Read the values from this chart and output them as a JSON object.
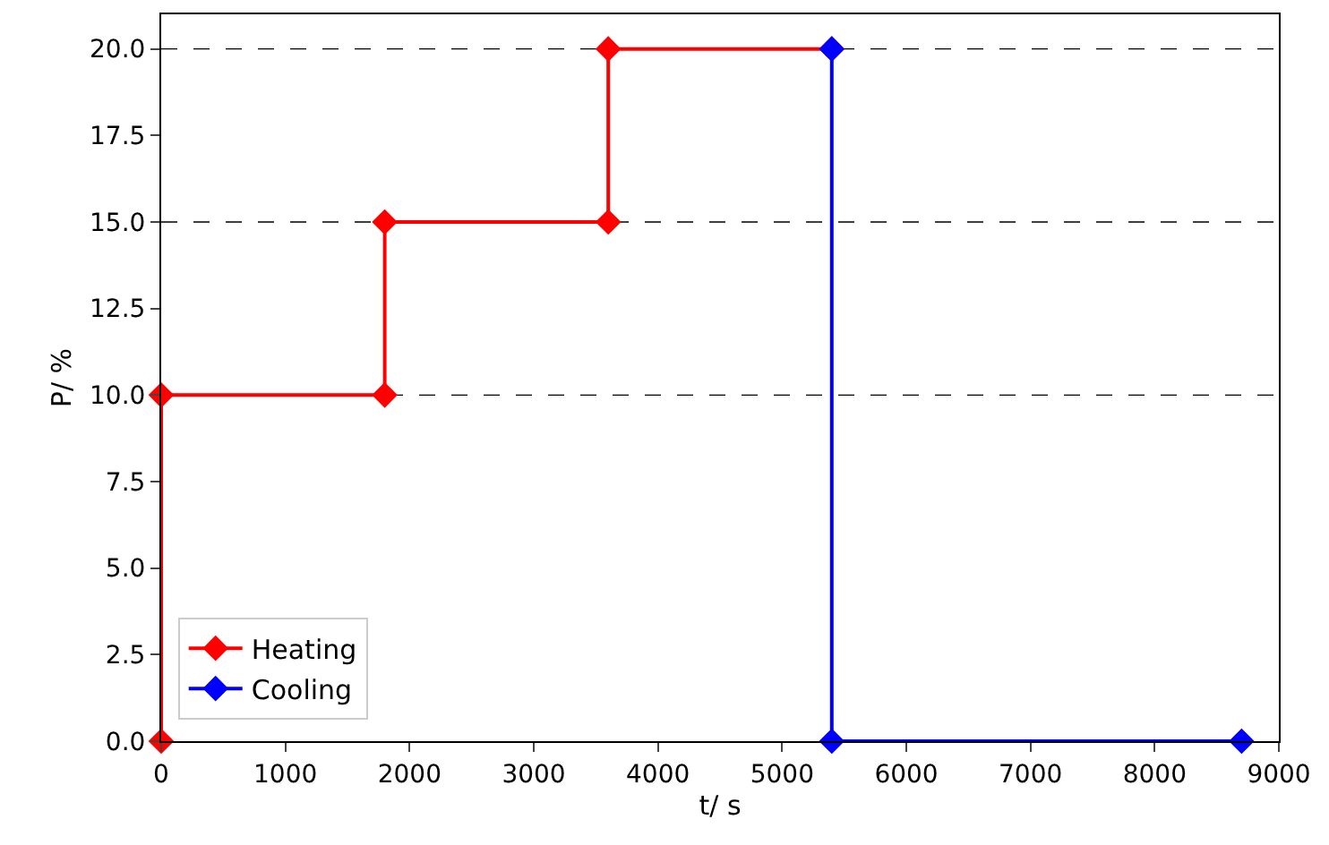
{
  "chart_data": {
    "type": "line",
    "xlabel": "t/ s",
    "ylabel": "P/ %",
    "series": [
      {
        "name": "Heating",
        "color": "#ff0000",
        "x": [
          0,
          0,
          1800,
          1800,
          3600,
          3600,
          5400
        ],
        "values": [
          0,
          10,
          10,
          15,
          15,
          20,
          20
        ]
      },
      {
        "name": "Cooling",
        "color": "#0000ff",
        "x": [
          5400,
          5400,
          8700
        ],
        "values": [
          20,
          0,
          0
        ]
      }
    ],
    "xlim": [
      0,
      9000
    ],
    "xticks": [
      0,
      1000,
      2000,
      3000,
      4000,
      5000,
      6000,
      7000,
      8000,
      9000
    ],
    "ylim": [
      0,
      21
    ],
    "yticks": [
      {
        "value": 0,
        "label": "0.0"
      },
      {
        "value": 2.5,
        "label": "2.5"
      },
      {
        "value": 5,
        "label": "5.0"
      },
      {
        "value": 7.5,
        "label": "7.5"
      },
      {
        "value": 10,
        "label": "10.0"
      },
      {
        "value": 12.5,
        "label": "12.5"
      },
      {
        "value": 15,
        "label": "15.0"
      },
      {
        "value": 17.5,
        "label": "17.5"
      },
      {
        "value": 20,
        "label": "20.0"
      }
    ],
    "ref_lines": [
      {
        "axis": "y",
        "value": 10,
        "color": "#000000",
        "line_style": "dashed"
      },
      {
        "axis": "y",
        "value": 15,
        "color": "#000000",
        "line_style": "dashed"
      },
      {
        "axis": "y",
        "value": 20,
        "color": "#000000",
        "line_style": "dashed"
      }
    ],
    "marker": "diamond",
    "line_style": "solid",
    "grid": false,
    "legend": "bottom left"
  }
}
